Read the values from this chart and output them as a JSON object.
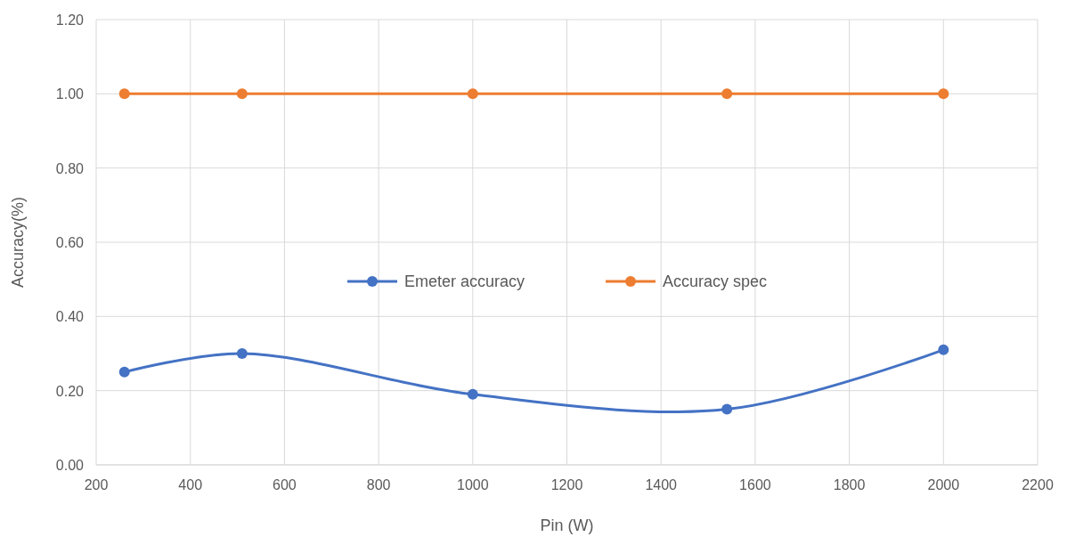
{
  "chart_data": {
    "type": "line",
    "xlabel": "Pin (W)",
    "ylabel": "Accuracy(%)",
    "x": [
      260,
      510,
      1000,
      1540,
      2000
    ],
    "series": [
      {
        "name": "Emeter accuracy",
        "color": "#4472c4",
        "values": [
          0.25,
          0.3,
          0.19,
          0.15,
          0.31
        ]
      },
      {
        "name": "Accuracy spec",
        "color": "#ed7d31",
        "values": [
          1,
          1,
          1,
          1,
          1
        ]
      }
    ],
    "xlim": [
      200,
      2200
    ],
    "xticks": [
      200,
      400,
      600,
      800,
      1000,
      1200,
      1400,
      1600,
      1800,
      2000,
      2200
    ],
    "ylim": [
      0,
      1.2
    ],
    "yticks": [
      {
        "value": 0,
        "label": "0.00"
      },
      {
        "value": 0.2,
        "label": "0.20"
      },
      {
        "value": 0.4,
        "label": "0.40"
      },
      {
        "value": 0.6,
        "label": "0.60"
      },
      {
        "value": 0.8,
        "label": "0.80"
      },
      {
        "value": 1,
        "label": "1.00"
      },
      {
        "value": 1.2,
        "label": "1.20"
      }
    ],
    "grid": true,
    "legend": "center",
    "marker": "circle",
    "line_style": "solid"
  }
}
